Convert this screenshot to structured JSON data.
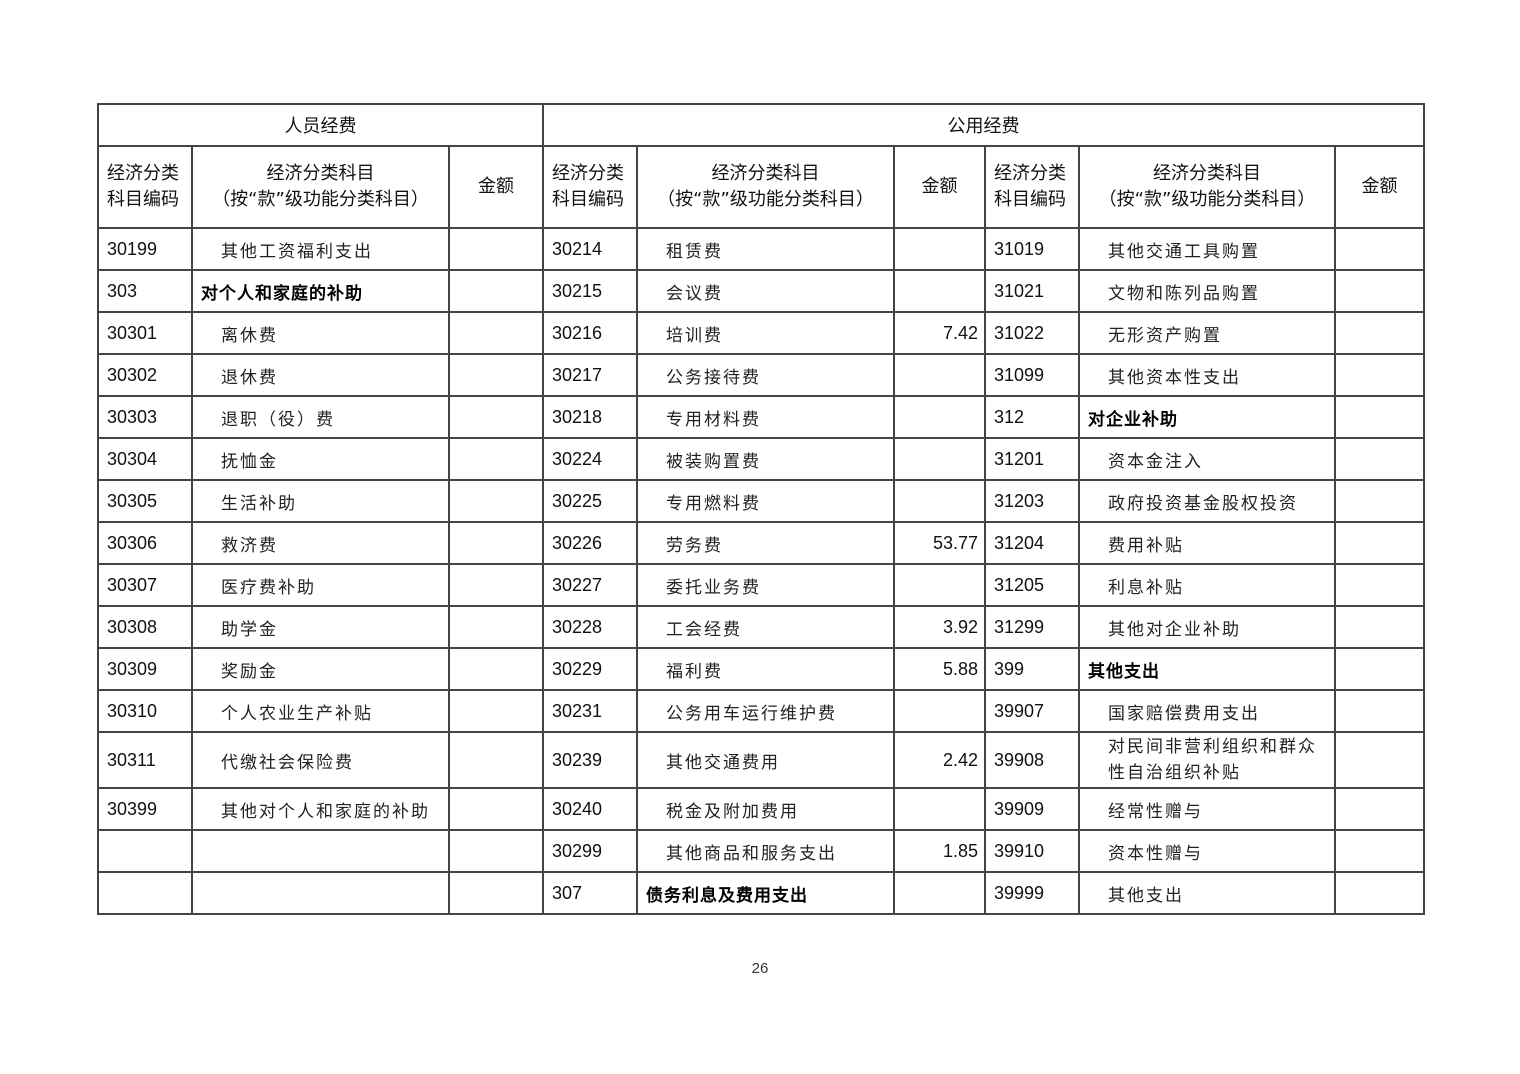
{
  "groups": {
    "personnel": "人员经费",
    "public": "公用经费"
  },
  "headers": {
    "code": "经济分类科目编码",
    "code_line1": "经济分类",
    "code_line2": "科目编码",
    "item_line1": "经济分类科目",
    "item_line2": "（按“款”级功能分类科目）",
    "amount": "金额"
  },
  "rows": [
    [
      [
        "30199",
        "其他工资福利支出",
        "",
        0
      ],
      [
        "30214",
        "租赁费",
        "",
        0
      ],
      [
        "31019",
        "其他交通工具购置",
        "",
        0
      ]
    ],
    [
      [
        "303",
        "对个人和家庭的补助",
        "",
        1
      ],
      [
        "30215",
        "会议费",
        "",
        0
      ],
      [
        "31021",
        "文物和陈列品购置",
        "",
        0
      ]
    ],
    [
      [
        "30301",
        "离休费",
        "",
        0
      ],
      [
        "30216",
        "培训费",
        "7.42",
        0
      ],
      [
        "31022",
        "无形资产购置",
        "",
        0
      ]
    ],
    [
      [
        "30302",
        "退休费",
        "",
        0
      ],
      [
        "30217",
        "公务接待费",
        "",
        0
      ],
      [
        "31099",
        "其他资本性支出",
        "",
        0
      ]
    ],
    [
      [
        "30303",
        "退职（役）费",
        "",
        0
      ],
      [
        "30218",
        "专用材料费",
        "",
        0
      ],
      [
        "312",
        "对企业补助",
        "",
        1
      ]
    ],
    [
      [
        "30304",
        "抚恤金",
        "",
        0
      ],
      [
        "30224",
        "被装购置费",
        "",
        0
      ],
      [
        "31201",
        "资本金注入",
        "",
        0
      ]
    ],
    [
      [
        "30305",
        "生活补助",
        "",
        0
      ],
      [
        "30225",
        "专用燃料费",
        "",
        0
      ],
      [
        "31203",
        "政府投资基金股权投资",
        "",
        0
      ]
    ],
    [
      [
        "30306",
        "救济费",
        "",
        0
      ],
      [
        "30226",
        "劳务费",
        "53.77",
        0
      ],
      [
        "31204",
        "费用补贴",
        "",
        0
      ]
    ],
    [
      [
        "30307",
        "医疗费补助",
        "",
        0
      ],
      [
        "30227",
        "委托业务费",
        "",
        0
      ],
      [
        "31205",
        "利息补贴",
        "",
        0
      ]
    ],
    [
      [
        "30308",
        "助学金",
        "",
        0
      ],
      [
        "30228",
        "工会经费",
        "3.92",
        0
      ],
      [
        "31299",
        "其他对企业补助",
        "",
        0
      ]
    ],
    [
      [
        "30309",
        "奖励金",
        "",
        0
      ],
      [
        "30229",
        "福利费",
        "5.88",
        0
      ],
      [
        "399",
        "其他支出",
        "",
        1
      ]
    ],
    [
      [
        "30310",
        "个人农业生产补贴",
        "",
        0
      ],
      [
        "30231",
        "公务用车运行维护费",
        "",
        0
      ],
      [
        "39907",
        "国家赔偿费用支出",
        "",
        0
      ]
    ],
    [
      [
        "30311",
        "代缴社会保险费",
        "",
        0
      ],
      [
        "30239",
        "其他交通费用",
        "2.42",
        0
      ],
      [
        "39908",
        "对民间非营利组织和群众性自治组织补贴",
        "",
        0
      ]
    ],
    [
      [
        "30399",
        "其他对个人和家庭的补助",
        "",
        0
      ],
      [
        "30240",
        "税金及附加费用",
        "",
        0
      ],
      [
        "39909",
        "经常性赠与",
        "",
        0
      ]
    ],
    [
      [
        "",
        "",
        "",
        0
      ],
      [
        "30299",
        "其他商品和服务支出",
        "1.85",
        0
      ],
      [
        "39910",
        "资本性赠与",
        "",
        0
      ]
    ],
    [
      [
        "",
        "",
        "",
        0
      ],
      [
        "307",
        "债务利息及费用支出",
        "",
        1
      ],
      [
        "39999",
        "其他支出",
        "",
        0
      ]
    ]
  ],
  "page_number": "26"
}
